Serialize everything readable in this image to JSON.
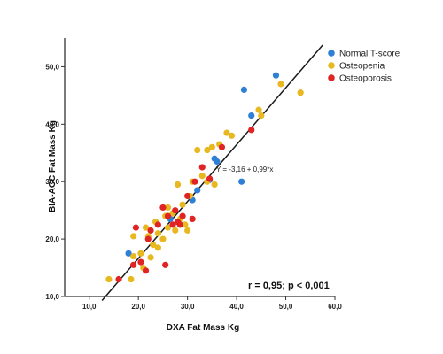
{
  "chart_data": {
    "type": "scatter",
    "xlabel": "DXA Fat Mass Kg",
    "ylabel": "BIA-ACC Fat Mass Kg",
    "xlim": [
      5,
      60
    ],
    "ylim": [
      10,
      55
    ],
    "x_ticks": [
      10,
      20,
      30,
      40,
      50,
      60
    ],
    "y_ticks": [
      10,
      20,
      30,
      40,
      50
    ],
    "x_tick_labels": [
      "10,0",
      "20,0",
      "30,0",
      "40,0",
      "50,0",
      "60,0"
    ],
    "y_tick_labels": [
      "10,0",
      "20,0",
      "30,0",
      "40,0",
      "50,0"
    ],
    "grid": false,
    "legend_position": "top-right",
    "regression": {
      "label": "Y = -3,16 + 0,99*x",
      "intercept": -3.16,
      "slope": 0.99,
      "x_range": [
        12.6,
        57.5
      ]
    },
    "annotation": "r = 0,95; p < 0,001",
    "series": [
      {
        "name": "Normal T-score",
        "color": "#2e7fd6",
        "points": [
          [
            18,
            17.5
          ],
          [
            26.5,
            23.5
          ],
          [
            31,
            26.8
          ],
          [
            32,
            28.5
          ],
          [
            34.5,
            30.3
          ],
          [
            35.5,
            34
          ],
          [
            36,
            33.5
          ],
          [
            41,
            30
          ],
          [
            41.5,
            46
          ],
          [
            43,
            41.5
          ],
          [
            48,
            48.5
          ]
        ]
      },
      {
        "name": "Osteopenia",
        "color": "#e8b820",
        "points": [
          [
            14,
            13
          ],
          [
            18.5,
            13
          ],
          [
            19,
            20.5
          ],
          [
            19,
            17
          ],
          [
            20.5,
            17.5
          ],
          [
            21,
            15
          ],
          [
            21.5,
            22
          ],
          [
            22,
            20.5
          ],
          [
            22.5,
            16.8
          ],
          [
            23,
            19
          ],
          [
            23.5,
            23
          ],
          [
            24,
            21
          ],
          [
            24,
            18.5
          ],
          [
            25,
            20
          ],
          [
            25.5,
            24
          ],
          [
            26,
            22
          ],
          [
            26,
            25.5
          ],
          [
            27,
            24.5
          ],
          [
            27.5,
            21.5
          ],
          [
            28,
            29.5
          ],
          [
            28.5,
            23.5
          ],
          [
            29,
            26
          ],
          [
            29.5,
            22.5
          ],
          [
            30,
            21.5
          ],
          [
            30.5,
            27.5
          ],
          [
            31,
            30
          ],
          [
            32,
            35.5
          ],
          [
            33,
            31
          ],
          [
            34,
            30
          ],
          [
            34,
            35.5
          ],
          [
            35,
            36
          ],
          [
            35.5,
            29.5
          ],
          [
            36.5,
            36.5
          ],
          [
            38,
            38.5
          ],
          [
            39,
            38
          ],
          [
            44.5,
            42.5
          ],
          [
            45,
            41.5
          ],
          [
            49,
            47
          ],
          [
            53,
            45.5
          ]
        ]
      },
      {
        "name": "Osteoporosis",
        "color": "#e02424",
        "points": [
          [
            16,
            13
          ],
          [
            19,
            15.5
          ],
          [
            19.5,
            22
          ],
          [
            20.5,
            16
          ],
          [
            21.5,
            14.5
          ],
          [
            22,
            20
          ],
          [
            22.5,
            21.5
          ],
          [
            24,
            22.5
          ],
          [
            25,
            25.5
          ],
          [
            25.5,
            15.5
          ],
          [
            26,
            24
          ],
          [
            27,
            22.5
          ],
          [
            27.5,
            25
          ],
          [
            28,
            23
          ],
          [
            28.5,
            22.5
          ],
          [
            29,
            24
          ],
          [
            30,
            27.5
          ],
          [
            31,
            23.5
          ],
          [
            31.5,
            30
          ],
          [
            33,
            32.5
          ],
          [
            34.5,
            30.5
          ],
          [
            37,
            36
          ],
          [
            43,
            39
          ]
        ]
      }
    ]
  }
}
